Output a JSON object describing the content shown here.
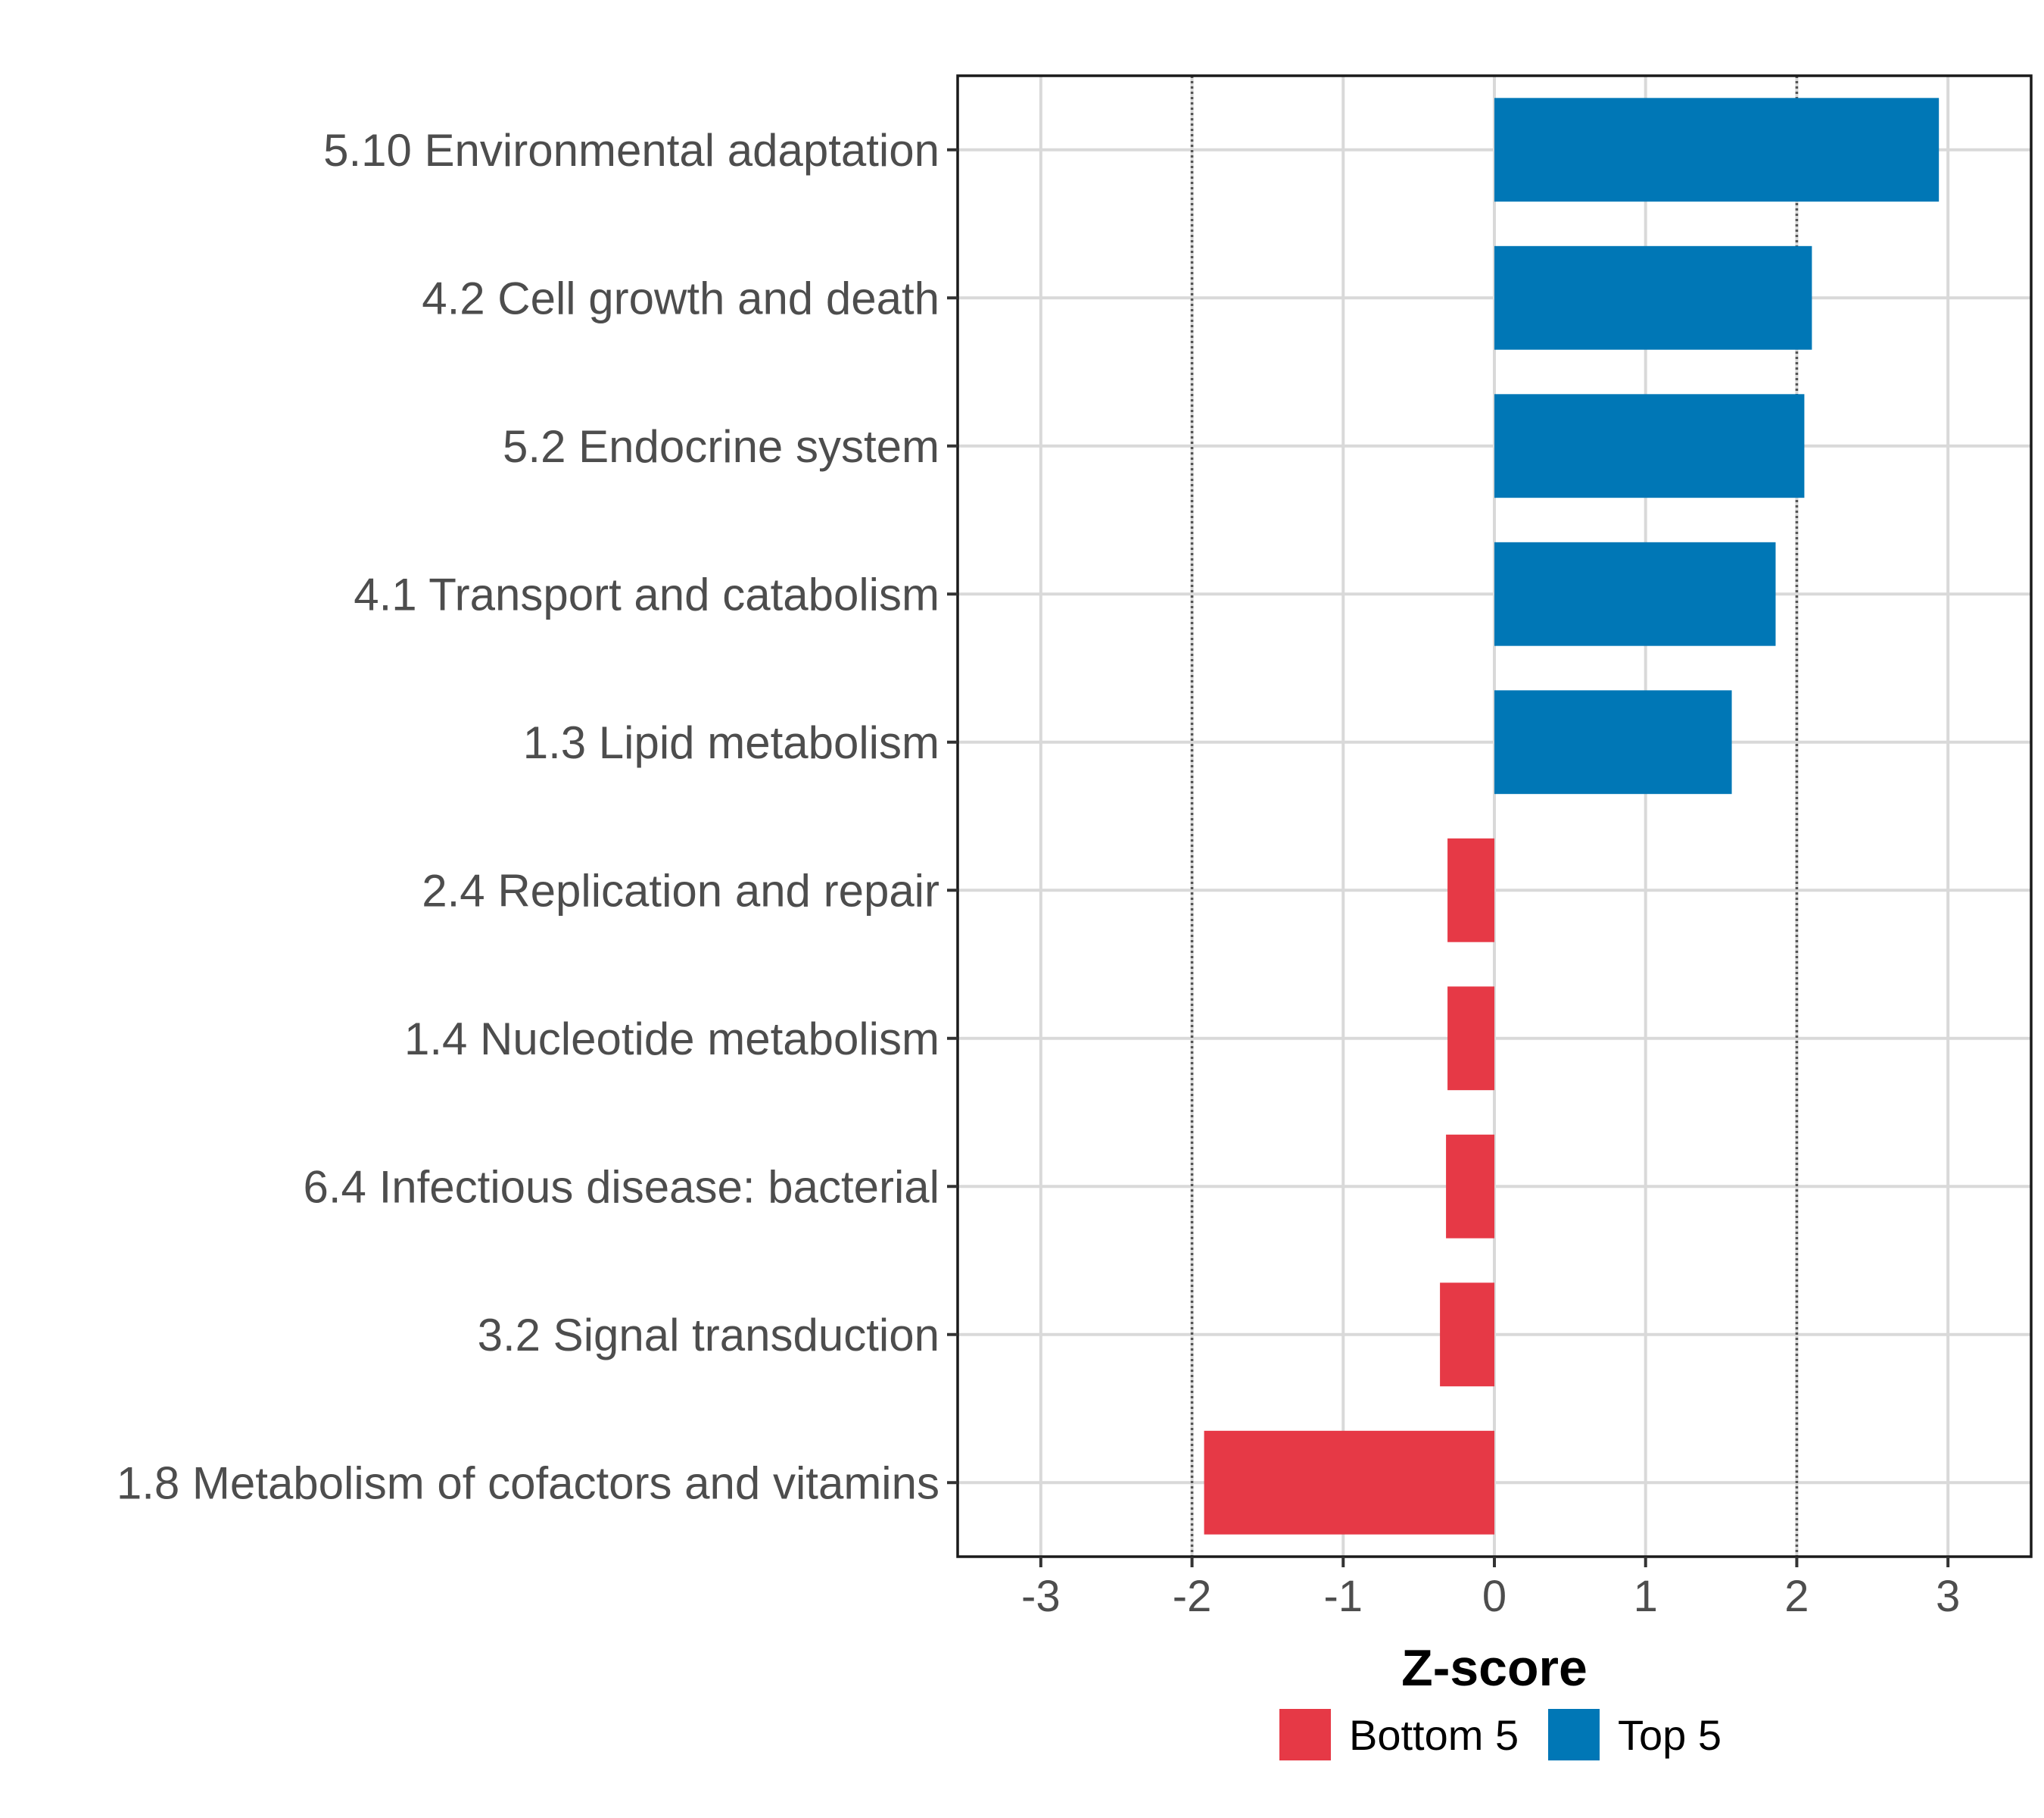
{
  "chart_data": {
    "type": "bar",
    "orientation": "horizontal",
    "title": "",
    "xlabel": "Z-score",
    "ylabel": "",
    "xlim": [
      -3.55,
      3.55
    ],
    "xticks": [
      -3,
      -2,
      -1,
      0,
      1,
      2,
      3
    ],
    "grid": true,
    "reference_lines": [
      -2,
      2
    ],
    "categories": [
      "5.10 Environmental adaptation",
      "4.2 Cell growth and death",
      "5.2 Endocrine system",
      "4.1 Transport and catabolism",
      "1.3 Lipid metabolism",
      "2.4 Replication and repair",
      "1.4 Nucleotide metabolism",
      "6.4 Infectious disease: bacterial",
      "3.2 Signal transduction",
      "1.8 Metabolism of cofactors and vitamins"
    ],
    "values": [
      2.94,
      2.1,
      2.05,
      1.86,
      1.57,
      -0.31,
      -0.31,
      -0.32,
      -0.36,
      -1.92
    ],
    "groups": [
      "Top 5",
      "Top 5",
      "Top 5",
      "Top 5",
      "Top 5",
      "Bottom 5",
      "Bottom 5",
      "Bottom 5",
      "Bottom 5",
      "Bottom 5"
    ],
    "legend": {
      "position": "bottom",
      "entries": [
        {
          "name": "Bottom 5",
          "color": "#e63946"
        },
        {
          "name": "Top 5",
          "color": "#0077b6"
        }
      ]
    }
  }
}
